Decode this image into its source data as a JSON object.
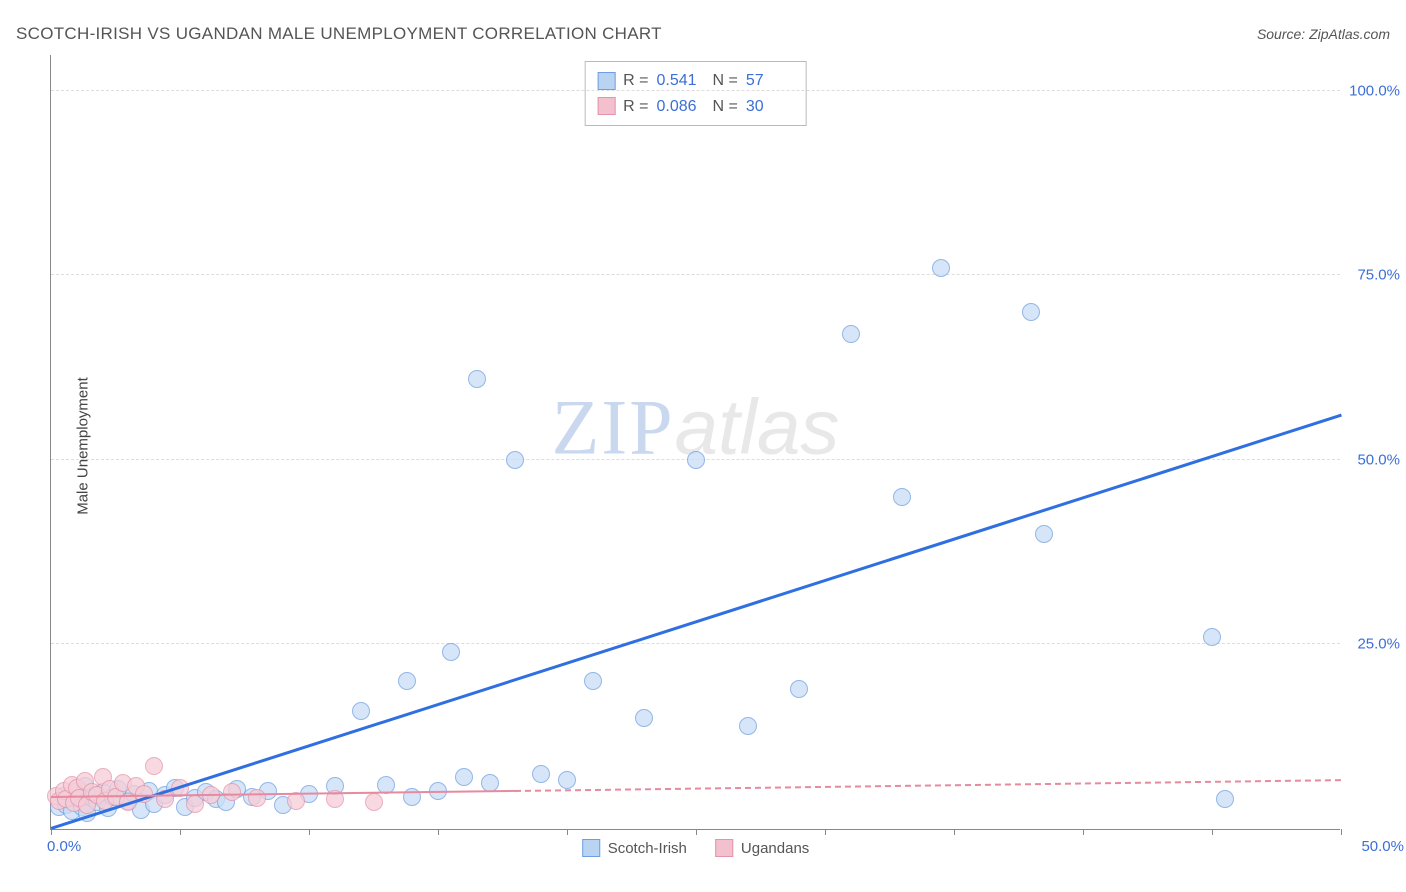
{
  "title": "SCOTCH-IRISH VS UGANDAN MALE UNEMPLOYMENT CORRELATION CHART",
  "source_prefix": "Source: ",
  "source_name": "ZipAtlas.com",
  "y_axis_label": "Male Unemployment",
  "watermark": {
    "part1": "ZIP",
    "part2": "atlas"
  },
  "chart": {
    "type": "scatter",
    "xlim": [
      0,
      50
    ],
    "ylim": [
      0,
      105
    ],
    "x_tick_positions": [
      0,
      5,
      10,
      15,
      20,
      25,
      30,
      35,
      40,
      45,
      50
    ],
    "x_label_min": "0.0%",
    "x_label_max": "50.0%",
    "y_ticks": [
      {
        "v": 25,
        "label": "25.0%"
      },
      {
        "v": 50,
        "label": "50.0%"
      },
      {
        "v": 75,
        "label": "75.0%"
      },
      {
        "v": 100,
        "label": "100.0%"
      }
    ],
    "background_color": "#ffffff",
    "grid_color": "#dddddd",
    "axis_color": "#888888",
    "tick_label_color": "#3b6fd6",
    "series": [
      {
        "key": "scotch_irish",
        "label": "Scotch-Irish",
        "fill": "#c9ddf5",
        "stroke": "#6f9fe0",
        "swatch_fill": "#b9d3f2",
        "swatch_stroke": "#6f9fe0",
        "r_label": "R =",
        "r_value": "0.541",
        "n_label": "N =",
        "n_value": "57",
        "marker_radius": 9,
        "marker_opacity": 0.75,
        "trend": {
          "color": "#2f6fe0",
          "width": 2.5,
          "x1": 0,
          "y1": 0,
          "x2": 50,
          "y2": 56,
          "solid_until_x": 50
        },
        "points": [
          [
            0.3,
            3
          ],
          [
            0.5,
            4.5
          ],
          [
            0.6,
            3.2
          ],
          [
            0.8,
            2.5
          ],
          [
            1.0,
            4
          ],
          [
            1.0,
            5.2
          ],
          [
            1.2,
            3
          ],
          [
            1.3,
            5.8
          ],
          [
            1.4,
            2.2
          ],
          [
            1.6,
            4.2
          ],
          [
            1.8,
            3.6
          ],
          [
            2.0,
            5
          ],
          [
            2.2,
            2.8
          ],
          [
            2.4,
            4.4
          ],
          [
            2.6,
            5.4
          ],
          [
            3.0,
            3.8
          ],
          [
            3.2,
            4.8
          ],
          [
            3.5,
            2.6
          ],
          [
            3.8,
            5.2
          ],
          [
            4.0,
            3.4
          ],
          [
            4.4,
            4.6
          ],
          [
            4.8,
            5.6
          ],
          [
            5.2,
            3.0
          ],
          [
            5.6,
            4.2
          ],
          [
            6.0,
            5.0
          ],
          [
            6.4,
            4.0
          ],
          [
            6.8,
            3.6
          ],
          [
            7.2,
            5.4
          ],
          [
            7.8,
            4.4
          ],
          [
            8.4,
            5.2
          ],
          [
            9.0,
            3.2
          ],
          [
            10.0,
            4.8
          ],
          [
            11.0,
            5.8
          ],
          [
            12.0,
            16
          ],
          [
            13.0,
            6.0
          ],
          [
            13.8,
            20
          ],
          [
            14.0,
            4.4
          ],
          [
            15.0,
            5.2
          ],
          [
            15.5,
            24
          ],
          [
            16.0,
            7.0
          ],
          [
            16.5,
            61
          ],
          [
            17.0,
            6.2
          ],
          [
            18.0,
            50
          ],
          [
            19.0,
            7.4
          ],
          [
            20.0,
            6.6
          ],
          [
            21.0,
            20
          ],
          [
            23.0,
            15
          ],
          [
            25.0,
            50
          ],
          [
            27.0,
            14
          ],
          [
            29.0,
            19
          ],
          [
            31.0,
            67
          ],
          [
            33.0,
            45
          ],
          [
            34.5,
            76
          ],
          [
            38.0,
            70
          ],
          [
            38.5,
            40
          ],
          [
            45.0,
            26
          ],
          [
            45.5,
            4
          ]
        ]
      },
      {
        "key": "ugandans",
        "label": "Ugandans",
        "fill": "#f6cdd7",
        "stroke": "#e394aa",
        "swatch_fill": "#f3c0ce",
        "swatch_stroke": "#e394aa",
        "r_label": "R =",
        "r_value": "0.086",
        "n_label": "N =",
        "n_value": "30",
        "marker_radius": 9,
        "marker_opacity": 0.75,
        "trend": {
          "color": "#e68aa0",
          "width": 2,
          "x1": 0,
          "y1": 4.2,
          "x2": 50,
          "y2": 6.5,
          "solid_until_x": 18
        },
        "points": [
          [
            0.2,
            4.5
          ],
          [
            0.3,
            3.8
          ],
          [
            0.5,
            5.2
          ],
          [
            0.6,
            4.0
          ],
          [
            0.8,
            6.0
          ],
          [
            0.9,
            3.5
          ],
          [
            1.0,
            5.5
          ],
          [
            1.1,
            4.2
          ],
          [
            1.3,
            6.5
          ],
          [
            1.4,
            3.2
          ],
          [
            1.6,
            5.0
          ],
          [
            1.8,
            4.6
          ],
          [
            2.0,
            7.0
          ],
          [
            2.1,
            3.8
          ],
          [
            2.3,
            5.4
          ],
          [
            2.5,
            4.4
          ],
          [
            2.8,
            6.2
          ],
          [
            3.0,
            3.6
          ],
          [
            3.3,
            5.8
          ],
          [
            3.6,
            4.8
          ],
          [
            4.0,
            8.5
          ],
          [
            4.4,
            4.0
          ],
          [
            5.0,
            5.6
          ],
          [
            5.6,
            3.4
          ],
          [
            6.2,
            4.6
          ],
          [
            7.0,
            5.0
          ],
          [
            8.0,
            4.2
          ],
          [
            9.5,
            3.8
          ],
          [
            11.0,
            4.0
          ],
          [
            12.5,
            3.6
          ]
        ]
      }
    ]
  }
}
